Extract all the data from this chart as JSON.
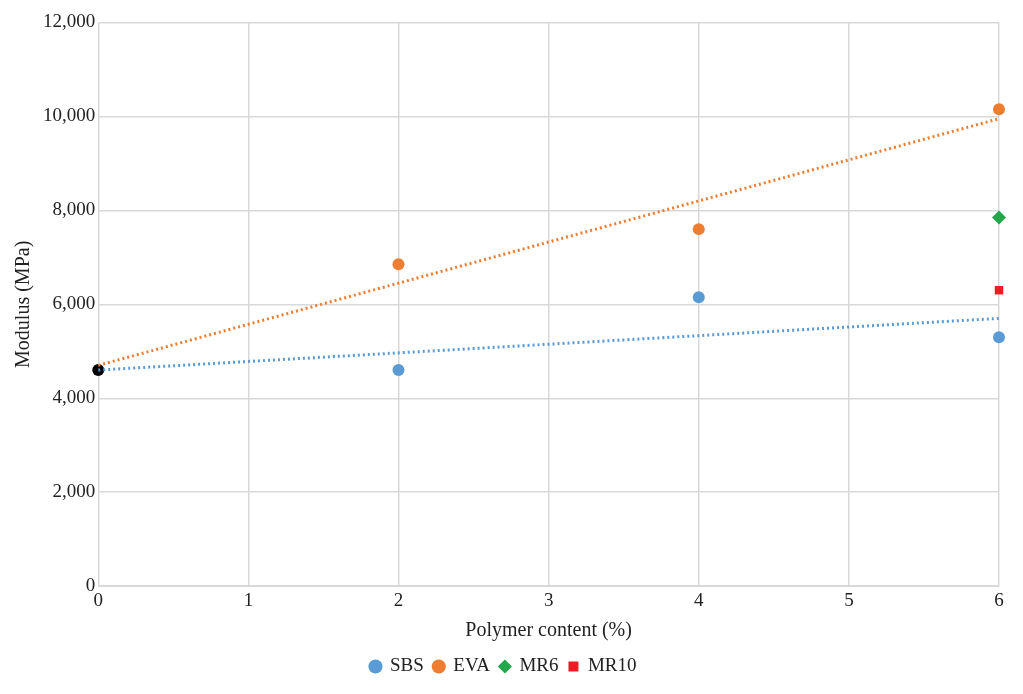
{
  "chart_data": {
    "type": "scatter",
    "xlabel": "Polymer content (%)",
    "ylabel": "Modulus (MPa)",
    "xlim": [
      0,
      6
    ],
    "xticks": [
      0,
      1,
      2,
      3,
      4,
      5,
      6
    ],
    "ylim": [
      0,
      12000
    ],
    "yticks": [
      {
        "value": 0,
        "label": "0"
      },
      {
        "value": 2000,
        "label": "2,000"
      },
      {
        "value": 4000,
        "label": "4,000"
      },
      {
        "value": 6000,
        "label": "6,000"
      },
      {
        "value": 8000,
        "label": "8,000"
      },
      {
        "value": 10000,
        "label": "10,000"
      },
      {
        "value": 12000,
        "label": "12,000"
      }
    ],
    "grid": true,
    "legend": "bottom",
    "series": [
      {
        "type": "line",
        "color": "#5b9bd5",
        "x": [
          0,
          6
        ],
        "values": [
          4600,
          5700
        ],
        "marker": "none",
        "line_style": "dotted"
      },
      {
        "type": "line",
        "color": "#ed7d31",
        "x": [
          0,
          6
        ],
        "values": [
          4700,
          9950
        ],
        "marker": "none",
        "line_style": "dotted"
      },
      {
        "name": "SBS",
        "color": "#5b9bd5",
        "x": [
          2,
          4,
          6
        ],
        "values": [
          4600,
          6150,
          5300
        ],
        "marker": "circle"
      },
      {
        "name": "EVA",
        "color": "#ed7d31",
        "x": [
          2,
          4,
          6
        ],
        "values": [
          6850,
          7600,
          10150
        ],
        "marker": "circle"
      },
      {
        "name": "MR6",
        "color": "#22a84a",
        "x": [
          6
        ],
        "values": [
          7850
        ],
        "marker": "diamond"
      },
      {
        "name": "MR10",
        "color": "#ee1c25",
        "x": [
          6
        ],
        "values": [
          6300
        ],
        "marker": "square"
      },
      {
        "color": "#000000",
        "x": [
          0
        ],
        "values": [
          4600
        ],
        "marker": "circle"
      }
    ]
  }
}
